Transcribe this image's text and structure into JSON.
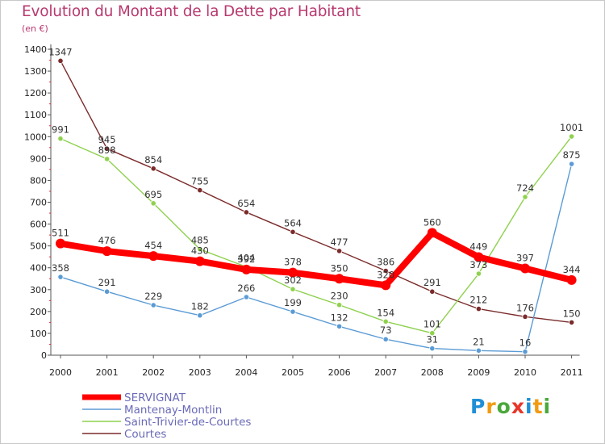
{
  "header": {
    "title": "Evolution du Montant de la Dette par Habitant",
    "subtitle": "(en €)"
  },
  "logo": {
    "text": "Proxiti",
    "colors": [
      "#1f8fd6",
      "#f09b12",
      "#4aa83a",
      "#e8362b",
      "#1f8fd6",
      "#f09b12",
      "#4aa83a"
    ]
  },
  "chart_data": {
    "type": "line",
    "title": "Evolution du Montant de la Dette par Habitant",
    "subtitle": "(en €)",
    "x": [
      "2000",
      "2001",
      "2002",
      "2003",
      "2004",
      "2005",
      "2006",
      "2007",
      "2008",
      "2009",
      "2010",
      "2011"
    ],
    "ylim": [
      0,
      1400
    ],
    "yticks": [
      0,
      100,
      200,
      300,
      400,
      500,
      600,
      700,
      800,
      900,
      1000,
      1100,
      1200,
      1300,
      1400
    ],
    "grid": false,
    "legend": "bottom-left",
    "series": [
      {
        "name": "SERVIGNAT",
        "color": "#ff0000",
        "values": [
          511,
          476,
          454,
          430,
          392,
          378,
          350,
          320,
          560,
          449,
          397,
          344
        ]
      },
      {
        "name": "Mantenay-Montlin",
        "color": "#5b9bd5",
        "values": [
          358,
          291,
          229,
          182,
          266,
          199,
          132,
          73,
          31,
          21,
          16,
          875
        ]
      },
      {
        "name": "Saint-Trivier-de-Courtes",
        "color": "#8fd14f",
        "values": [
          991,
          898,
          695,
          485,
          404,
          302,
          230,
          154,
          101,
          373,
          724,
          1001
        ]
      },
      {
        "name": "Courtes",
        "color": "#7b2b2b",
        "values": [
          1347,
          945,
          854,
          755,
          654,
          564,
          477,
          386,
          291,
          212,
          176,
          150
        ]
      }
    ]
  }
}
